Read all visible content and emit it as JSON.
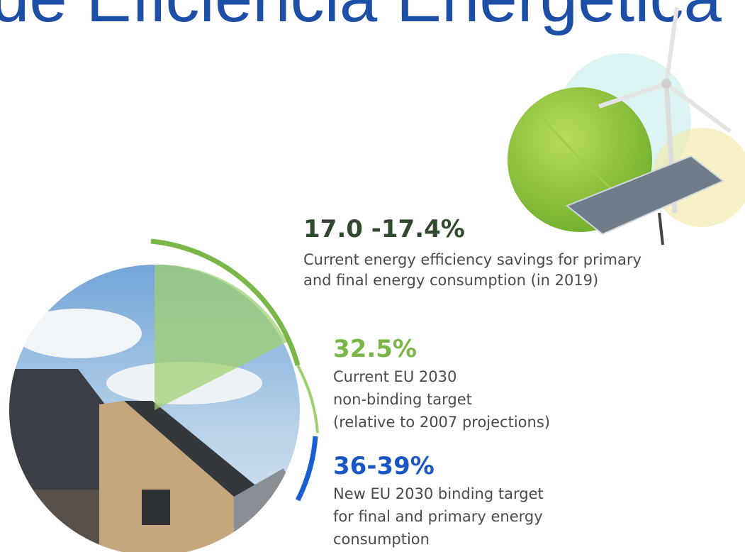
{
  "header": {
    "title": "de Eficiencia Energética"
  },
  "stats": [
    {
      "figure": "17.0 -17.4%",
      "lines": [
        "Current energy efficiency savings for primary",
        "and final energy consumption (in 2019)"
      ]
    },
    {
      "figure": "32.5%",
      "lines": [
        "Current EU 2030",
        "non-binding target",
        "(relative to 2007 projections)"
      ]
    },
    {
      "figure": "36-39%",
      "lines": [
        "New EU 2030 binding target",
        "for final and primary energy",
        "consumption"
      ]
    }
  ]
}
